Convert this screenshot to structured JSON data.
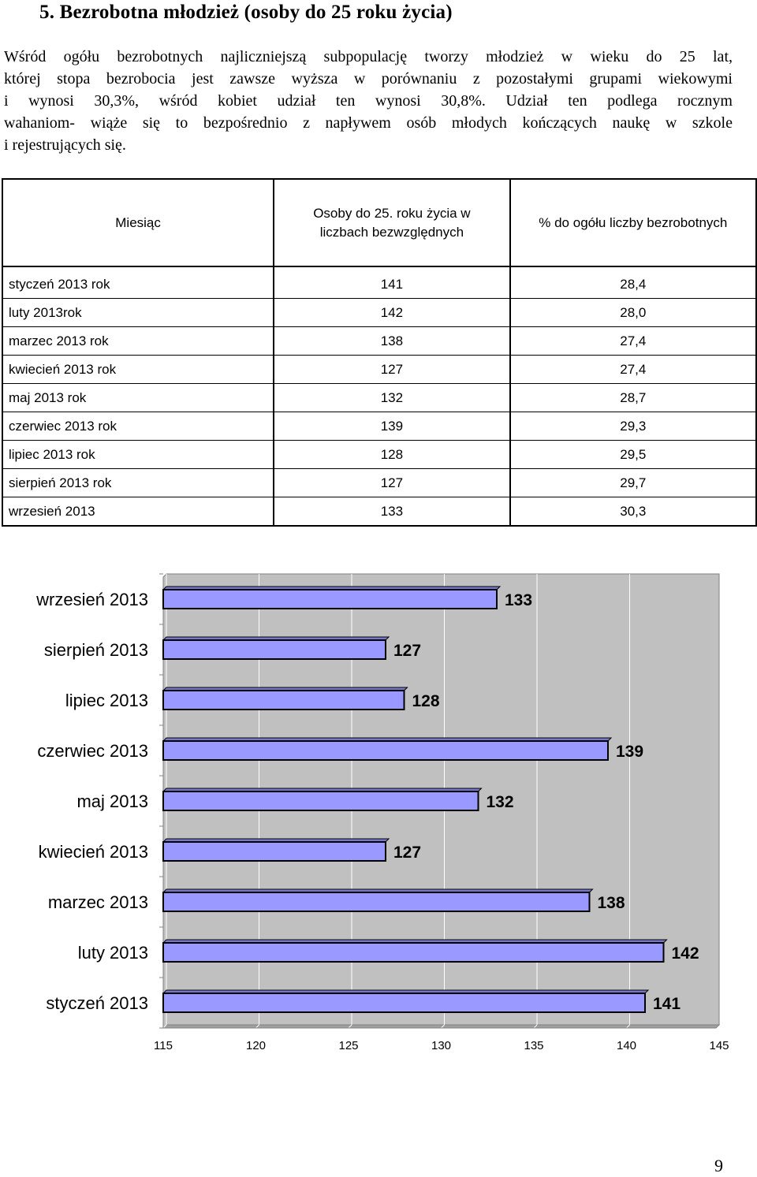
{
  "heading": "5. Bezrobotna młodzież (osoby do 25 roku życia)",
  "paragraph_lines": [
    "Wśród ogółu bezrobotnych najliczniejszą subpopulację tworzy młodzież w wieku do 25 lat,",
    "której stopa bezrobocia jest zawsze wyższa w porównaniu z pozostałymi grupami wiekowymi",
    "i wynosi 30,3%, wśród kobiet udział ten wynosi 30,8%. Udział ten podlega rocznym",
    "wahaniom- wiąże się to bezpośrednio z napływem osób młodych kończących naukę w szkole",
    "i rejestrujących się."
  ],
  "table": {
    "headers": {
      "month": "Miesiąc",
      "count_line1": "Osoby do 25. roku życia w",
      "count_line2": "liczbach bezwzględnych",
      "percent": "% do ogółu liczby bezrobotnych"
    },
    "rows": [
      {
        "month": "styczeń 2013 rok",
        "count": "141",
        "percent": "28,4"
      },
      {
        "month": "luty 2013rok",
        "count": "142",
        "percent": "28,0"
      },
      {
        "month": "marzec 2013 rok",
        "count": "138",
        "percent": "27,4"
      },
      {
        "month": "kwiecień 2013 rok",
        "count": "127",
        "percent": "27,4"
      },
      {
        "month": "maj 2013 rok",
        "count": "132",
        "percent": "28,7"
      },
      {
        "month": "czerwiec 2013 rok",
        "count": "139",
        "percent": "29,3"
      },
      {
        "month": "lipiec 2013 rok",
        "count": "128",
        "percent": "29,5"
      },
      {
        "month": "sierpień 2013 rok",
        "count": "127",
        "percent": "29,7"
      },
      {
        "month": "wrzesień 2013",
        "count": "133",
        "percent": "30,3"
      }
    ]
  },
  "chart_data": {
    "type": "bar",
    "orientation": "horizontal",
    "categories": [
      "wrzesień 2013",
      "sierpień 2013",
      "lipiec 2013",
      "czerwiec 2013",
      "maj 2013",
      "kwiecień 2013",
      "marzec 2013",
      "luty 2013",
      "styczeń 2013"
    ],
    "values": [
      133,
      127,
      128,
      139,
      132,
      127,
      138,
      142,
      141
    ],
    "xlim": [
      115,
      145
    ],
    "xticks": [
      115,
      120,
      125,
      130,
      135,
      140,
      145
    ],
    "grid": true,
    "bar_color": "#9999ff",
    "plot_background": "#c0c0c0",
    "gridline_color": "#ffffff"
  },
  "page_number": "9"
}
